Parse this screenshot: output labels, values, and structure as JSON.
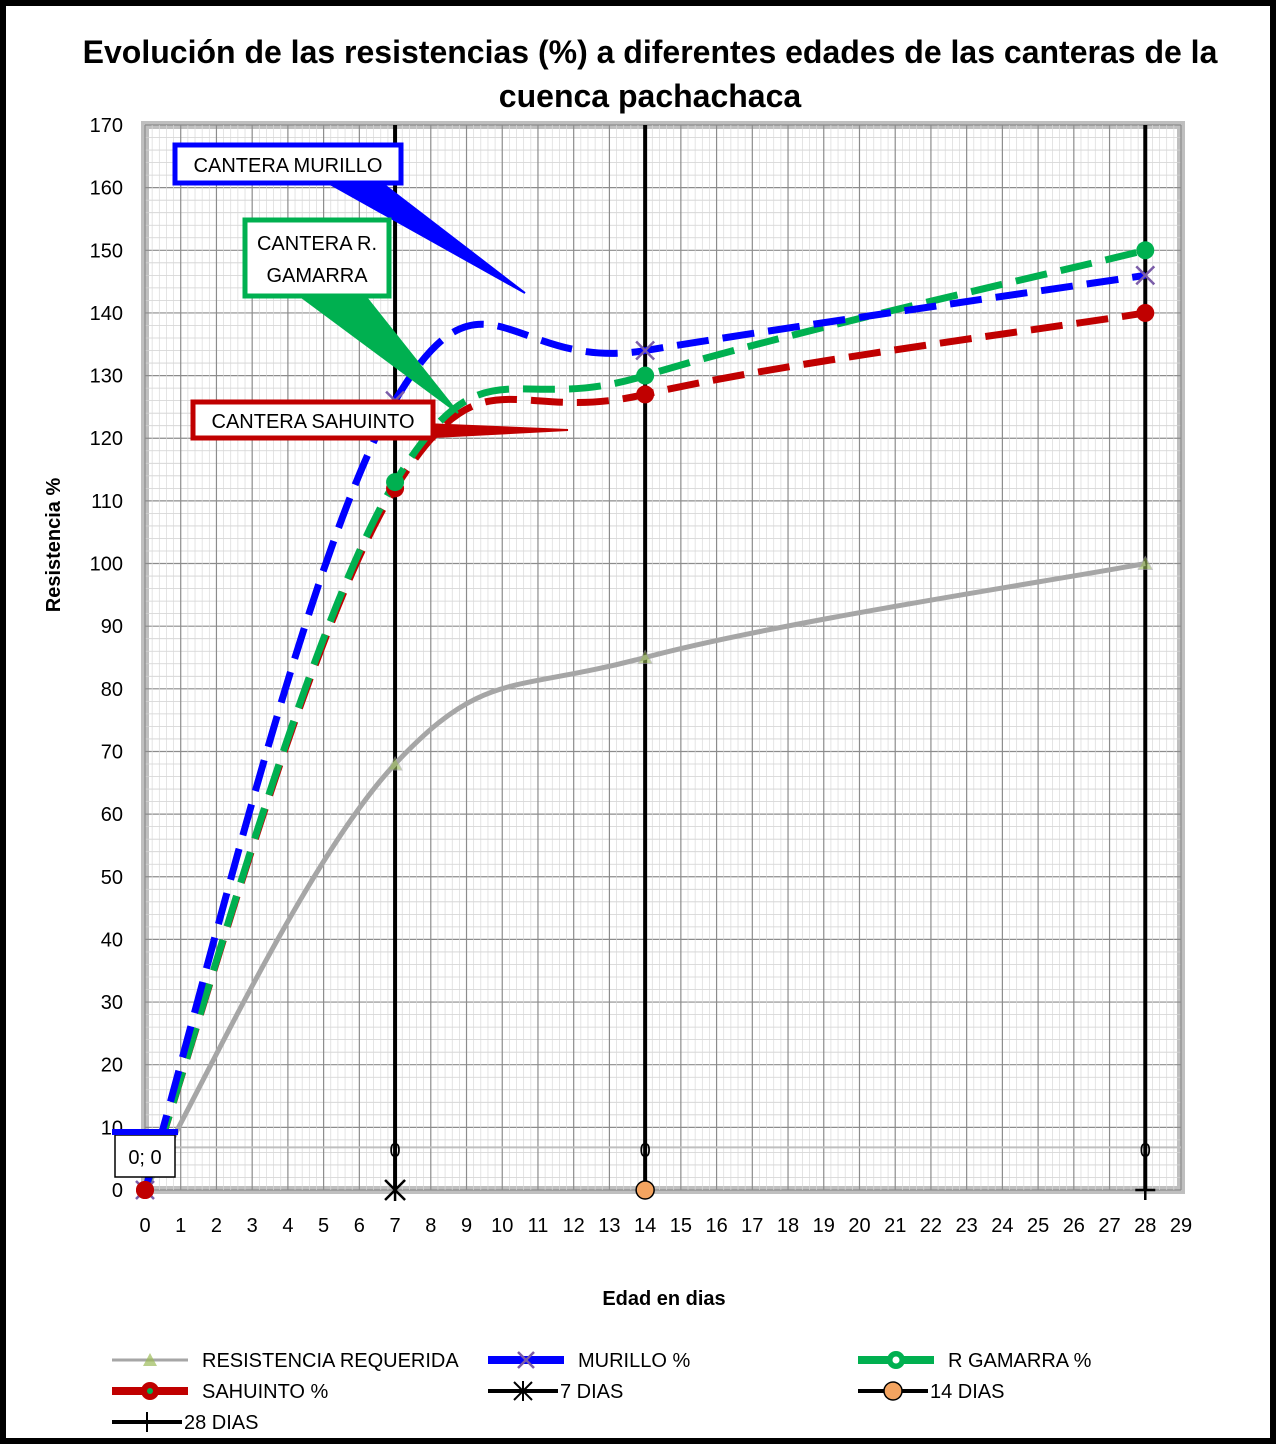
{
  "chart_data": {
    "type": "line",
    "title": "Evolución de las resistencias (%) a diferentes edades de las canteras de la cuenca pachachaca",
    "xlabel": "Edad en dias",
    "ylabel": "Resistencia %",
    "xlim": [
      0,
      29
    ],
    "ylim": [
      0,
      170
    ],
    "x_ticks": [
      0,
      1,
      2,
      3,
      4,
      5,
      6,
      7,
      8,
      9,
      10,
      11,
      12,
      13,
      14,
      15,
      16,
      17,
      18,
      19,
      20,
      21,
      22,
      23,
      24,
      25,
      26,
      27,
      28,
      29
    ],
    "y_ticks": [
      0,
      10,
      20,
      30,
      40,
      50,
      60,
      70,
      80,
      90,
      100,
      110,
      120,
      130,
      140,
      150,
      160,
      170
    ],
    "grid": true,
    "legend_position": "bottom",
    "series": [
      {
        "name": "RESISTENCIA REQUERIDA",
        "color": "#A6A6A6",
        "x": [
          0,
          7,
          14,
          28
        ],
        "y": [
          0,
          68,
          85,
          100
        ]
      },
      {
        "name": "MURILLO %",
        "color": "#0000FF",
        "x": [
          0,
          7,
          14,
          28
        ],
        "y": [
          0,
          126,
          134,
          146
        ]
      },
      {
        "name": "R GAMARRA %",
        "color": "#00B050",
        "x": [
          0,
          7,
          14,
          28
        ],
        "y": [
          0,
          113,
          130,
          150
        ]
      },
      {
        "name": "SAHUINTO %",
        "color": "#C00000",
        "x": [
          0,
          7,
          14,
          28
        ],
        "y": [
          0,
          112,
          127,
          140
        ]
      },
      {
        "name": "7 DIAS",
        "color": "#000000",
        "x": [
          7,
          7
        ],
        "y": [
          0,
          170
        ]
      },
      {
        "name": "14 DIAS",
        "color": "#000000",
        "marker_color": "#F4A460",
        "x": [
          14,
          14
        ],
        "y": [
          0,
          170
        ]
      },
      {
        "name": "28 DIAS",
        "color": "#000000",
        "x": [
          28,
          28
        ],
        "y": [
          0,
          170
        ]
      }
    ],
    "annotations": [
      {
        "text": "CANTERA MURILLO",
        "border": "#0000FF"
      },
      {
        "text_lines": [
          "CANTERA R.",
          "GAMARRA"
        ],
        "border": "#00B050"
      },
      {
        "text": "CANTERA SAHUINTO",
        "border": "#C00000"
      },
      {
        "text": "0; 0",
        "border": "#0000FF"
      }
    ],
    "point_labels": [
      "0",
      "0",
      "0"
    ]
  }
}
